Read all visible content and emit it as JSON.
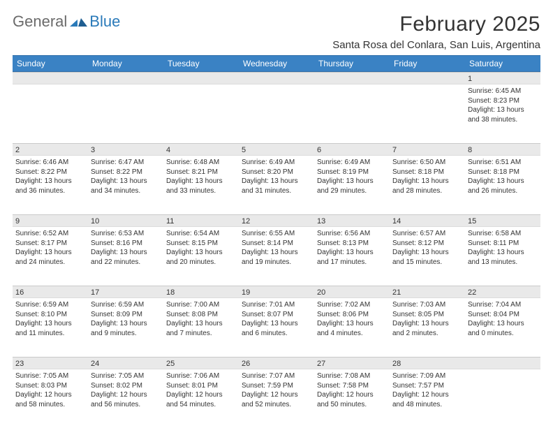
{
  "logo": {
    "text1": "General",
    "text2": "Blue"
  },
  "title": "February 2025",
  "location": "Santa Rosa del Conlara, San Luis, Argentina",
  "colors": {
    "header_bg": "#3a82c4",
    "header_text": "#ffffff",
    "daynum_bg": "#e9e9e9",
    "logo_gray": "#6b6b6b",
    "logo_blue": "#2a7ab9"
  },
  "weekdays": [
    "Sunday",
    "Monday",
    "Tuesday",
    "Wednesday",
    "Thursday",
    "Friday",
    "Saturday"
  ],
  "weeks": [
    [
      {
        "day": "",
        "lines": []
      },
      {
        "day": "",
        "lines": []
      },
      {
        "day": "",
        "lines": []
      },
      {
        "day": "",
        "lines": []
      },
      {
        "day": "",
        "lines": []
      },
      {
        "day": "",
        "lines": []
      },
      {
        "day": "1",
        "lines": [
          "Sunrise: 6:45 AM",
          "Sunset: 8:23 PM",
          "Daylight: 13 hours and 38 minutes."
        ]
      }
    ],
    [
      {
        "day": "2",
        "lines": [
          "Sunrise: 6:46 AM",
          "Sunset: 8:22 PM",
          "Daylight: 13 hours and 36 minutes."
        ]
      },
      {
        "day": "3",
        "lines": [
          "Sunrise: 6:47 AM",
          "Sunset: 8:22 PM",
          "Daylight: 13 hours and 34 minutes."
        ]
      },
      {
        "day": "4",
        "lines": [
          "Sunrise: 6:48 AM",
          "Sunset: 8:21 PM",
          "Daylight: 13 hours and 33 minutes."
        ]
      },
      {
        "day": "5",
        "lines": [
          "Sunrise: 6:49 AM",
          "Sunset: 8:20 PM",
          "Daylight: 13 hours and 31 minutes."
        ]
      },
      {
        "day": "6",
        "lines": [
          "Sunrise: 6:49 AM",
          "Sunset: 8:19 PM",
          "Daylight: 13 hours and 29 minutes."
        ]
      },
      {
        "day": "7",
        "lines": [
          "Sunrise: 6:50 AM",
          "Sunset: 8:18 PM",
          "Daylight: 13 hours and 28 minutes."
        ]
      },
      {
        "day": "8",
        "lines": [
          "Sunrise: 6:51 AM",
          "Sunset: 8:18 PM",
          "Daylight: 13 hours and 26 minutes."
        ]
      }
    ],
    [
      {
        "day": "9",
        "lines": [
          "Sunrise: 6:52 AM",
          "Sunset: 8:17 PM",
          "Daylight: 13 hours and 24 minutes."
        ]
      },
      {
        "day": "10",
        "lines": [
          "Sunrise: 6:53 AM",
          "Sunset: 8:16 PM",
          "Daylight: 13 hours and 22 minutes."
        ]
      },
      {
        "day": "11",
        "lines": [
          "Sunrise: 6:54 AM",
          "Sunset: 8:15 PM",
          "Daylight: 13 hours and 20 minutes."
        ]
      },
      {
        "day": "12",
        "lines": [
          "Sunrise: 6:55 AM",
          "Sunset: 8:14 PM",
          "Daylight: 13 hours and 19 minutes."
        ]
      },
      {
        "day": "13",
        "lines": [
          "Sunrise: 6:56 AM",
          "Sunset: 8:13 PM",
          "Daylight: 13 hours and 17 minutes."
        ]
      },
      {
        "day": "14",
        "lines": [
          "Sunrise: 6:57 AM",
          "Sunset: 8:12 PM",
          "Daylight: 13 hours and 15 minutes."
        ]
      },
      {
        "day": "15",
        "lines": [
          "Sunrise: 6:58 AM",
          "Sunset: 8:11 PM",
          "Daylight: 13 hours and 13 minutes."
        ]
      }
    ],
    [
      {
        "day": "16",
        "lines": [
          "Sunrise: 6:59 AM",
          "Sunset: 8:10 PM",
          "Daylight: 13 hours and 11 minutes."
        ]
      },
      {
        "day": "17",
        "lines": [
          "Sunrise: 6:59 AM",
          "Sunset: 8:09 PM",
          "Daylight: 13 hours and 9 minutes."
        ]
      },
      {
        "day": "18",
        "lines": [
          "Sunrise: 7:00 AM",
          "Sunset: 8:08 PM",
          "Daylight: 13 hours and 7 minutes."
        ]
      },
      {
        "day": "19",
        "lines": [
          "Sunrise: 7:01 AM",
          "Sunset: 8:07 PM",
          "Daylight: 13 hours and 6 minutes."
        ]
      },
      {
        "day": "20",
        "lines": [
          "Sunrise: 7:02 AM",
          "Sunset: 8:06 PM",
          "Daylight: 13 hours and 4 minutes."
        ]
      },
      {
        "day": "21",
        "lines": [
          "Sunrise: 7:03 AM",
          "Sunset: 8:05 PM",
          "Daylight: 13 hours and 2 minutes."
        ]
      },
      {
        "day": "22",
        "lines": [
          "Sunrise: 7:04 AM",
          "Sunset: 8:04 PM",
          "Daylight: 13 hours and 0 minutes."
        ]
      }
    ],
    [
      {
        "day": "23",
        "lines": [
          "Sunrise: 7:05 AM",
          "Sunset: 8:03 PM",
          "Daylight: 12 hours and 58 minutes."
        ]
      },
      {
        "day": "24",
        "lines": [
          "Sunrise: 7:05 AM",
          "Sunset: 8:02 PM",
          "Daylight: 12 hours and 56 minutes."
        ]
      },
      {
        "day": "25",
        "lines": [
          "Sunrise: 7:06 AM",
          "Sunset: 8:01 PM",
          "Daylight: 12 hours and 54 minutes."
        ]
      },
      {
        "day": "26",
        "lines": [
          "Sunrise: 7:07 AM",
          "Sunset: 7:59 PM",
          "Daylight: 12 hours and 52 minutes."
        ]
      },
      {
        "day": "27",
        "lines": [
          "Sunrise: 7:08 AM",
          "Sunset: 7:58 PM",
          "Daylight: 12 hours and 50 minutes."
        ]
      },
      {
        "day": "28",
        "lines": [
          "Sunrise: 7:09 AM",
          "Sunset: 7:57 PM",
          "Daylight: 12 hours and 48 minutes."
        ]
      },
      {
        "day": "",
        "lines": []
      }
    ]
  ]
}
